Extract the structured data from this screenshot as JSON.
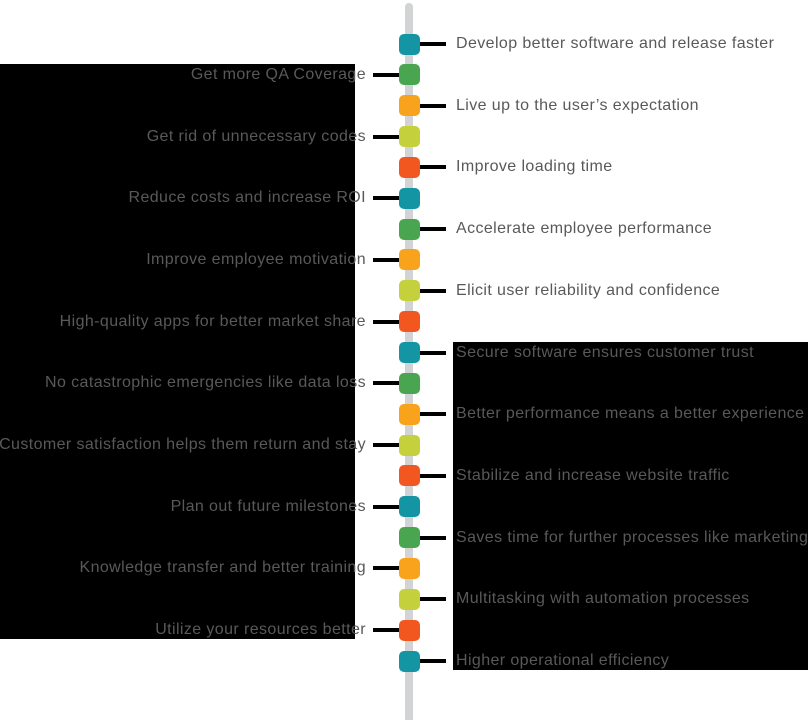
{
  "palette": {
    "background": "#ffffff",
    "panel": "#000000",
    "line": "#d1d3d4",
    "connector": "#000000",
    "label_text": "#58595b",
    "marker_colors": {
      "teal": "#1495a4",
      "green": "#4aa551",
      "orange": "#f9a21b",
      "lime": "#c4d13c",
      "red": "#f2571f"
    }
  },
  "timeline": {
    "items": [
      {
        "label": "Develop better software and release faster",
        "side": "right",
        "color": "teal"
      },
      {
        "label": "Get more QA Coverage",
        "side": "left",
        "color": "green"
      },
      {
        "label": "Live up to the user’s expectation",
        "side": "right",
        "color": "orange"
      },
      {
        "label": "Get rid of unnecessary codes",
        "side": "left",
        "color": "lime"
      },
      {
        "label": "Improve loading time",
        "side": "right",
        "color": "red"
      },
      {
        "label": "Reduce costs and increase ROI",
        "side": "left",
        "color": "teal"
      },
      {
        "label": "Accelerate employee performance",
        "side": "right",
        "color": "green"
      },
      {
        "label": "Improve employee motivation",
        "side": "left",
        "color": "orange"
      },
      {
        "label": "Elicit user reliability and confidence",
        "side": "right",
        "color": "lime"
      },
      {
        "label": "High-quality apps for better market share",
        "side": "left",
        "color": "red"
      },
      {
        "label": "Secure software ensures customer trust",
        "side": "right",
        "color": "teal"
      },
      {
        "label": "No catastrophic emergencies like data loss",
        "side": "left",
        "color": "green"
      },
      {
        "label": "Better performance means a better experience",
        "side": "right",
        "color": "orange"
      },
      {
        "label": "Customer satisfaction helps them return and stay",
        "side": "left",
        "color": "lime"
      },
      {
        "label": "Stabilize and increase website traffic",
        "side": "right",
        "color": "red"
      },
      {
        "label": "Plan out future milestones",
        "side": "left",
        "color": "teal"
      },
      {
        "label": "Saves time for further processes like marketing",
        "side": "right",
        "color": "green"
      },
      {
        "label": "Knowledge transfer and better training",
        "side": "left",
        "color": "orange"
      },
      {
        "label": "Multitasking with automation processes",
        "side": "right",
        "color": "lime"
      },
      {
        "label": "Utilize your resources better",
        "side": "left",
        "color": "red"
      },
      {
        "label": "Higher operational efficiency",
        "side": "right",
        "color": "teal"
      }
    ]
  }
}
